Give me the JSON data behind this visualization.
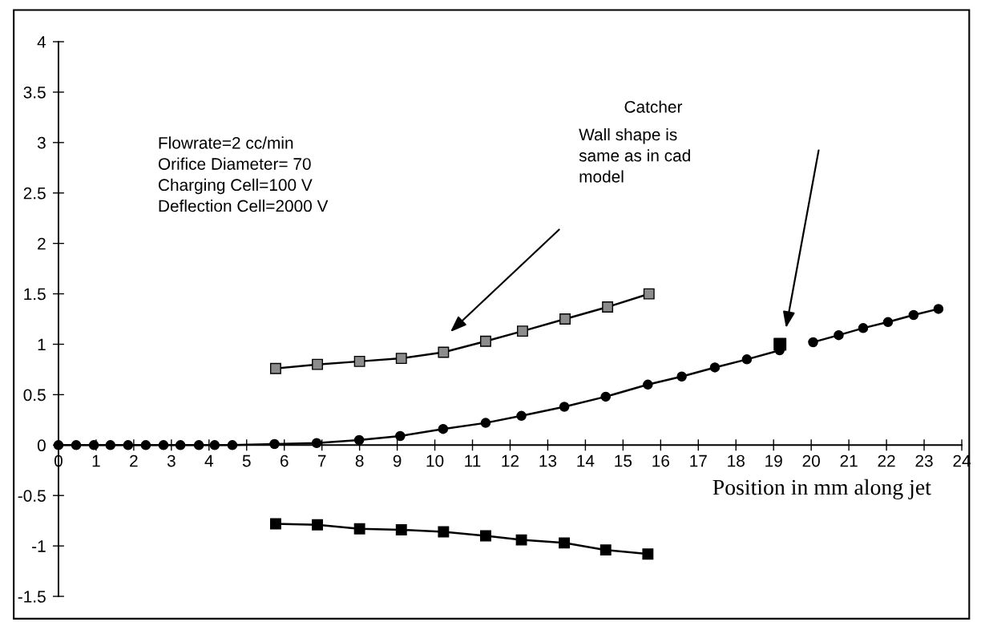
{
  "chart_data": {
    "type": "line",
    "xlabel": "Position in mm along jet",
    "xlim": [
      0,
      24
    ],
    "ylim": [
      -1.5,
      4
    ],
    "xticks": [
      0,
      1,
      2,
      3,
      4,
      5,
      6,
      7,
      8,
      9,
      10,
      11,
      12,
      13,
      14,
      15,
      16,
      17,
      18,
      19,
      20,
      21,
      22,
      23,
      24
    ],
    "yticks": [
      -1.5,
      -1,
      -0.5,
      0,
      0.5,
      1,
      1.5,
      2,
      2.5,
      3,
      3.5,
      4
    ],
    "grid": false,
    "legend": false,
    "line_style": "solid",
    "series": [
      {
        "type": "line",
        "marker": "square",
        "color": "#8c8c8c",
        "x": [
          5.77,
          6.88,
          8.0,
          9.11,
          10.23,
          11.35,
          12.33,
          13.46,
          14.59,
          15.69
        ],
        "values": [
          0.76,
          0.8,
          0.83,
          0.86,
          0.92,
          1.03,
          1.13,
          1.25,
          1.37,
          1.5
        ]
      },
      {
        "type": "line",
        "marker": "square",
        "color": "#000000",
        "x": [
          5.77,
          6.88,
          8.0,
          9.11,
          10.23,
          11.35,
          12.3,
          13.44,
          14.54,
          15.66
        ],
        "values": [
          -0.78,
          -0.79,
          -0.83,
          -0.84,
          -0.86,
          -0.9,
          -0.94,
          -0.97,
          -1.04,
          -1.08
        ]
      },
      {
        "type": "line",
        "marker": "circle",
        "color": "#000000",
        "x": [
          0,
          0.47,
          0.94,
          1.38,
          1.85,
          2.32,
          2.79,
          3.24,
          3.73,
          4.15,
          4.62,
          5.74,
          6.86,
          7.99,
          9.08,
          10.22,
          11.35,
          12.3,
          13.44,
          14.54,
          15.66,
          16.56,
          17.44,
          18.29,
          19.16
        ],
        "values": [
          0,
          0,
          0,
          0,
          0,
          0,
          0,
          0,
          0,
          0,
          0,
          0.01,
          0.02,
          0.05,
          0.09,
          0.16,
          0.22,
          0.29,
          0.38,
          0.48,
          0.6,
          0.68,
          0.77,
          0.85,
          0.94
        ]
      },
      {
        "type": "line",
        "marker": "circle",
        "color": "#000000",
        "x": [
          20.05,
          20.73,
          21.38,
          22.04,
          22.72,
          23.38
        ],
        "values": [
          1.02,
          1.09,
          1.16,
          1.22,
          1.29,
          1.35
        ]
      },
      {
        "type": "scatter",
        "marker": "square",
        "color": "#000000",
        "x": [
          19.17
        ],
        "values": [
          1.0
        ]
      }
    ],
    "annotations": [
      "Flowrate=2 cc/min\nOrifice Diameter= 70\nCharging Cell=100 V\nDeflection Cell=2000 V",
      "Wall shape is\nsame as in cad\nmodel",
      "Catcher"
    ]
  }
}
